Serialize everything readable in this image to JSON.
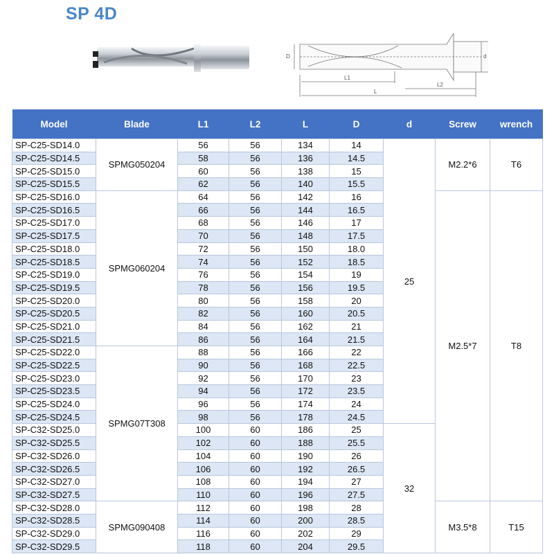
{
  "title": "SP 4D",
  "drawing_labels": {
    "D": "D",
    "d": "d",
    "L1": "L1",
    "L2": "L2",
    "L": "L"
  },
  "colors": {
    "header": "#4472c4",
    "stripe": "#dce6f4",
    "title": "#4a86c8"
  },
  "table": {
    "headers": [
      "Model",
      "Blade",
      "L1",
      "L2",
      "L",
      "D",
      "d",
      "Screw",
      "wrench"
    ],
    "rows": [
      [
        "SP-C25-SD14.0",
        "56",
        "56",
        "134",
        "14"
      ],
      [
        "SP-C25-SD14.5",
        "58",
        "56",
        "136",
        "14.5"
      ],
      [
        "SP-C25-SD15.0",
        "60",
        "56",
        "138",
        "15"
      ],
      [
        "SP-C25-SD15.5",
        "62",
        "56",
        "140",
        "15.5"
      ],
      [
        "SP-C25-SD16.0",
        "64",
        "56",
        "142",
        "16"
      ],
      [
        "SP-C25-SD16.5",
        "66",
        "56",
        "144",
        "16.5"
      ],
      [
        "SP-C25-SD17.0",
        "68",
        "56",
        "146",
        "17"
      ],
      [
        "SP-C25-SD17.5",
        "70",
        "56",
        "148",
        "17.5"
      ],
      [
        "SP-C25-SD18.0",
        "72",
        "56",
        "150",
        "18.0"
      ],
      [
        "SP-C25-SD18.5",
        "74",
        "56",
        "152",
        "18.5"
      ],
      [
        "SP-C25-SD19.0",
        "76",
        "56",
        "154",
        "19"
      ],
      [
        "SP-C25-SD19.5",
        "78",
        "56",
        "156",
        "19.5"
      ],
      [
        "SP-C25-SD20.0",
        "80",
        "56",
        "158",
        "20"
      ],
      [
        "SP-C25-SD20.5",
        "82",
        "56",
        "160",
        "20.5"
      ],
      [
        "SP-C25-SD21.0",
        "84",
        "56",
        "162",
        "21"
      ],
      [
        "SP-C25-SD21.5",
        "86",
        "56",
        "164",
        "21.5"
      ],
      [
        "SP-C25-SD22.0",
        "88",
        "56",
        "166",
        "22"
      ],
      [
        "SP-C25-SD22.5",
        "90",
        "56",
        "168",
        "22.5"
      ],
      [
        "SP-C25-SD23.0",
        "92",
        "56",
        "170",
        "23"
      ],
      [
        "SP-C25-SD23.5",
        "94",
        "56",
        "172",
        "23.5"
      ],
      [
        "SP-C25-SD24.0",
        "96",
        "56",
        "174",
        "24"
      ],
      [
        "SP-C25-SD24.5",
        "98",
        "56",
        "178",
        "24.5"
      ],
      [
        "SP-C32-SD25.0",
        "100",
        "60",
        "186",
        "25"
      ],
      [
        "SP-C32-SD25.5",
        "102",
        "60",
        "188",
        "25.5"
      ],
      [
        "SP-C32-SD26.0",
        "104",
        "60",
        "190",
        "26"
      ],
      [
        "SP-C32-SD26.5",
        "106",
        "60",
        "192",
        "26.5"
      ],
      [
        "SP-C32-SD27.0",
        "108",
        "60",
        "194",
        "27"
      ],
      [
        "SP-C32-SD27.5",
        "110",
        "60",
        "196",
        "27.5"
      ],
      [
        "SP-C32-SD28.0",
        "112",
        "60",
        "198",
        "28"
      ],
      [
        "SP-C32-SD28.5",
        "114",
        "60",
        "200",
        "28.5"
      ],
      [
        "SP-C32-SD29.0",
        "116",
        "60",
        "202",
        "29"
      ],
      [
        "SP-C32-SD29.5",
        "118",
        "60",
        "204",
        "29.5"
      ]
    ],
    "blade_groups": [
      {
        "value": "SPMG050204",
        "span": 4
      },
      {
        "value": "SPMG060204",
        "span": 12
      },
      {
        "value": "SPMG07T308",
        "span": 12
      },
      {
        "value": "SPMG090408",
        "span": 4
      }
    ],
    "d_groups": [
      {
        "value": "25",
        "span": 22
      },
      {
        "value": "32",
        "span": 10
      }
    ],
    "screw_groups": [
      {
        "value": "M2.2*6",
        "span": 4
      },
      {
        "value": "M2.5*7",
        "span": 24
      },
      {
        "value": "M3.5*8",
        "span": 4
      }
    ],
    "wrench_groups": [
      {
        "value": "T6",
        "span": 4
      },
      {
        "value": "T8",
        "span": 24
      },
      {
        "value": "T15",
        "span": 4
      }
    ]
  }
}
